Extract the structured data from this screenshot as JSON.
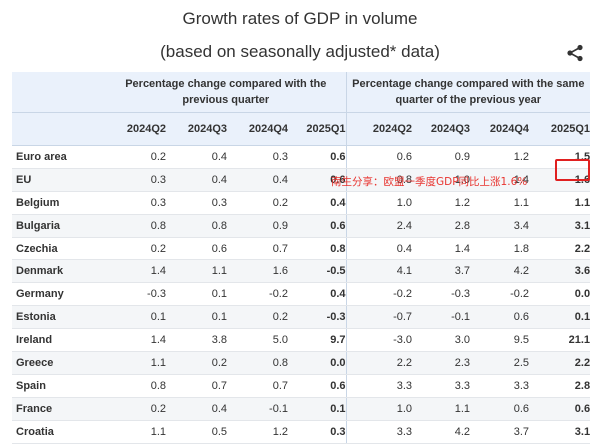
{
  "chart_data": {
    "type": "table",
    "title": "Growth rates of GDP in volume",
    "subtitle": "(based on seasonally adjusted* data)",
    "group_headers": [
      "Percentage change compared with the previous quarter",
      "Percentage change compared with the same quarter of the previous year"
    ],
    "columns": [
      "2024Q2",
      "2024Q3",
      "2024Q4",
      "2025Q1",
      "2024Q2",
      "2024Q3",
      "2024Q4",
      "2025Q1"
    ],
    "rows": [
      {
        "country": "Euro area",
        "values": [
          "0.2",
          "0.4",
          "0.3",
          "0.6",
          "0.6",
          "0.9",
          "1.2",
          "1.5"
        ]
      },
      {
        "country": "EU",
        "values": [
          "0.3",
          "0.4",
          "0.4",
          "0.6",
          "0.8",
          "1.0",
          "1.4",
          "1.6"
        ]
      },
      {
        "country": "Belgium",
        "values": [
          "0.3",
          "0.3",
          "0.2",
          "0.4",
          "1.0",
          "1.2",
          "1.1",
          "1.1"
        ]
      },
      {
        "country": "Bulgaria",
        "values": [
          "0.8",
          "0.8",
          "0.9",
          "0.6",
          "2.4",
          "2.8",
          "3.4",
          "3.1"
        ]
      },
      {
        "country": "Czechia",
        "values": [
          "0.2",
          "0.6",
          "0.7",
          "0.8",
          "0.4",
          "1.4",
          "1.8",
          "2.2"
        ]
      },
      {
        "country": "Denmark",
        "values": [
          "1.4",
          "1.1",
          "1.6",
          "-0.5",
          "4.1",
          "3.7",
          "4.2",
          "3.6"
        ]
      },
      {
        "country": "Germany",
        "values": [
          "-0.3",
          "0.1",
          "-0.2",
          "0.4",
          "-0.2",
          "-0.3",
          "-0.2",
          "0.0"
        ]
      },
      {
        "country": "Estonia",
        "values": [
          "0.1",
          "0.1",
          "0.2",
          "-0.3",
          "-0.7",
          "-0.1",
          "0.6",
          "0.1"
        ]
      },
      {
        "country": "Ireland",
        "values": [
          "1.4",
          "3.8",
          "5.0",
          "9.7",
          "-3.0",
          "3.0",
          "9.5",
          "21.1"
        ]
      },
      {
        "country": "Greece",
        "values": [
          "1.1",
          "0.2",
          "0.8",
          "0.0",
          "2.2",
          "2.3",
          "2.5",
          "2.2"
        ]
      },
      {
        "country": "Spain",
        "values": [
          "0.8",
          "0.7",
          "0.7",
          "0.6",
          "3.3",
          "3.3",
          "3.3",
          "2.8"
        ]
      },
      {
        "country": "France",
        "values": [
          "0.2",
          "0.4",
          "-0.1",
          "0.1",
          "1.0",
          "1.1",
          "0.6",
          "0.6"
        ]
      },
      {
        "country": "Croatia",
        "values": [
          "1.1",
          "0.5",
          "1.2",
          "0.3",
          "3.3",
          "4.2",
          "3.7",
          "3.1"
        ]
      }
    ],
    "annotation": "南生分享：欧盟一季度GDP同比上涨1.6%",
    "highlight_color": "#e02020",
    "header_bg": "#eaf1fb"
  },
  "icons": {
    "share": "share-icon"
  }
}
